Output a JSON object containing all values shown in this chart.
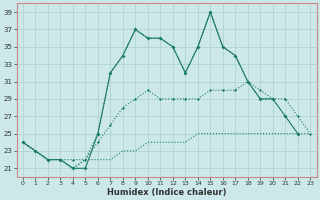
{
  "xlabel": "Humidex (Indice chaleur)",
  "x": [
    0,
    1,
    2,
    3,
    4,
    5,
    6,
    7,
    8,
    9,
    10,
    11,
    12,
    13,
    14,
    15,
    16,
    17,
    18,
    19,
    20,
    21,
    22,
    23
  ],
  "line_main": [
    24,
    23,
    22,
    22,
    21,
    21,
    25,
    32,
    34,
    37,
    36,
    36,
    35,
    32,
    35,
    39,
    35,
    34,
    31,
    29,
    29,
    27,
    25,
    null
  ],
  "line_dotted_rise": [
    24,
    23,
    22,
    22,
    21,
    22,
    25,
    32,
    34,
    37,
    36,
    36,
    35,
    32,
    35,
    39,
    35,
    34,
    31,
    29,
    29,
    null,
    null,
    null
  ],
  "line_band_upper": [
    24,
    23,
    22,
    22,
    22,
    22,
    24,
    26,
    28,
    29,
    30,
    29,
    29,
    29,
    29,
    30,
    30,
    30,
    31,
    30,
    29,
    29,
    27,
    25
  ],
  "line_band_lower": [
    24,
    23,
    22,
    22,
    21,
    22,
    22,
    22,
    23,
    23,
    24,
    24,
    24,
    24,
    25,
    25,
    25,
    25,
    25,
    25,
    25,
    25,
    25,
    25
  ],
  "color": "#1a7a6a",
  "bg_color": "#cce8e8",
  "grid_color": "#aacfcf",
  "ylim": [
    20,
    40
  ],
  "yticks": [
    21,
    23,
    25,
    27,
    29,
    31,
    33,
    35,
    37,
    39
  ],
  "xticks": [
    0,
    1,
    2,
    3,
    4,
    5,
    6,
    7,
    8,
    9,
    10,
    11,
    12,
    13,
    14,
    15,
    16,
    17,
    18,
    19,
    20,
    21,
    22,
    23
  ]
}
